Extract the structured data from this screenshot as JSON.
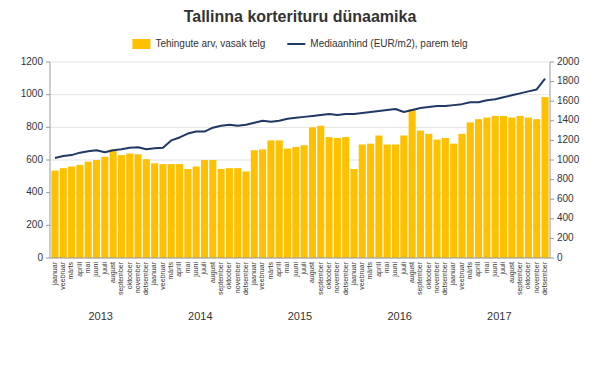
{
  "chart_data": {
    "type": "bar",
    "title": "Tallinna korterituru dünaamika",
    "categories": [
      "jaanuar",
      "veebruar",
      "märts",
      "aprill",
      "mai",
      "juuni",
      "juuli",
      "august",
      "september",
      "oktoober",
      "november",
      "detsember",
      "jaanuar",
      "veebruar",
      "märts",
      "aprill",
      "mai",
      "juuni",
      "juuli",
      "august",
      "september",
      "oktoober",
      "november",
      "detsember",
      "jaanuar",
      "veebruar",
      "märts",
      "aprill",
      "mai",
      "juuni",
      "juuli",
      "august",
      "september",
      "oktoober",
      "november",
      "detsember",
      "jaanuar",
      "veebruar",
      "märts",
      "aprill",
      "mai",
      "juuni",
      "juuli",
      "august",
      "september",
      "oktoober",
      "november",
      "detsember",
      "jaanuar",
      "veebruar",
      "märts",
      "aprill",
      "mai",
      "juuni",
      "juuli",
      "august",
      "september",
      "oktoober",
      "november",
      "detsember"
    ],
    "series": [
      {
        "name": "Tehingute arv, vasak telg",
        "type": "bar",
        "color": "#FFC000",
        "values": [
          535,
          550,
          560,
          570,
          590,
          600,
          620,
          665,
          630,
          640,
          635,
          605,
          580,
          575,
          575,
          575,
          545,
          560,
          600,
          600,
          545,
          550,
          550,
          530,
          660,
          665,
          720,
          720,
          670,
          680,
          690,
          800,
          810,
          740,
          735,
          740,
          545,
          695,
          700,
          750,
          695,
          695,
          750,
          910,
          780,
          760,
          725,
          735,
          700,
          760,
          830,
          850,
          860,
          870,
          870,
          860,
          870,
          860,
          850,
          985
        ]
      },
      {
        "name": "Mediaanhind (EUR/m2), parem telg",
        "type": "line",
        "axis": "y2",
        "color": "#1F3864",
        "values": [
          1020,
          1040,
          1050,
          1075,
          1090,
          1100,
          1080,
          1100,
          1110,
          1125,
          1130,
          1110,
          1120,
          1125,
          1200,
          1230,
          1270,
          1290,
          1290,
          1330,
          1350,
          1360,
          1350,
          1360,
          1380,
          1400,
          1390,
          1400,
          1420,
          1430,
          1440,
          1450,
          1460,
          1470,
          1460,
          1470,
          1470,
          1480,
          1490,
          1500,
          1510,
          1520,
          1490,
          1510,
          1530,
          1540,
          1550,
          1550,
          1560,
          1570,
          1590,
          1590,
          1610,
          1620,
          1640,
          1660,
          1680,
          1700,
          1720,
          1830
        ]
      }
    ],
    "annotations": [
      {
        "text": "2013",
        "x": 5.5
      },
      {
        "text": "2014",
        "x": 17.5
      },
      {
        "text": "2015",
        "x": 29.5
      },
      {
        "text": "2016",
        "x": 41.5
      },
      {
        "text": "2017",
        "x": 53.5
      }
    ],
    "ylim": [
      0,
      1200
    ],
    "yticks": [
      0,
      200,
      400,
      600,
      800,
      1000,
      1200
    ],
    "y2lim": [
      0,
      2000
    ],
    "y2ticks": [
      0,
      200,
      400,
      600,
      800,
      1000,
      1200,
      1400,
      1600,
      1800,
      2000
    ],
    "grid": true,
    "legend": "top"
  }
}
